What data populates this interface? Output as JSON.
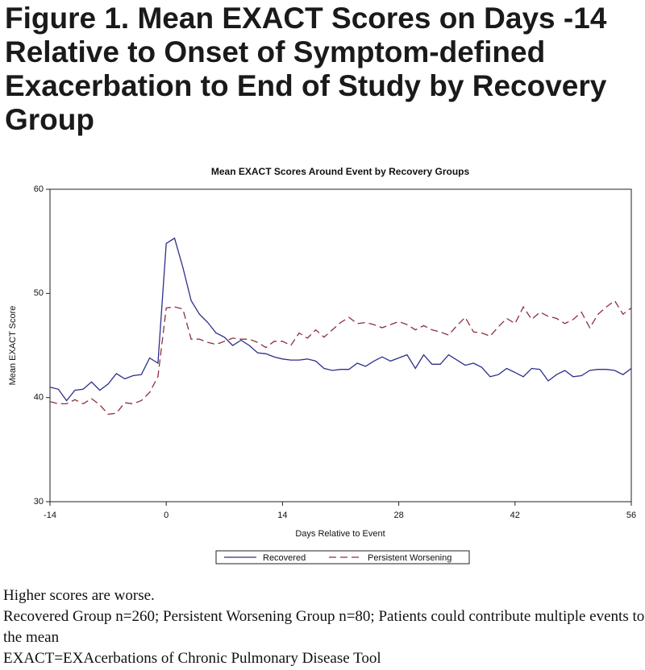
{
  "figure_title": "Figure 1. Mean EXACT Scores on Days -14 Relative to Onset of Symptom-defined Exacerbation to End of Study by Recovery Group",
  "chart_data": {
    "type": "line",
    "title": "Mean EXACT Scores Around Event by Recovery Groups",
    "x_label": "Days Relative to Event",
    "y_label": "Mean EXACT Score",
    "x": [
      -14,
      -13,
      -12,
      -11,
      -10,
      -9,
      -8,
      -7,
      -6,
      -5,
      -4,
      -3,
      -2,
      -1,
      0,
      1,
      2,
      3,
      4,
      5,
      6,
      7,
      8,
      9,
      10,
      11,
      12,
      13,
      14,
      15,
      16,
      17,
      18,
      19,
      20,
      21,
      22,
      23,
      24,
      25,
      26,
      27,
      28,
      29,
      30,
      31,
      32,
      33,
      34,
      35,
      36,
      37,
      38,
      39,
      40,
      41,
      42,
      43,
      44,
      45,
      46,
      47,
      48,
      49,
      50,
      51,
      52,
      53,
      54,
      55,
      56
    ],
    "series": [
      {
        "name": "Recovered",
        "color": "#2e2e8c",
        "dash": false,
        "values": [
          41.0,
          40.8,
          39.7,
          40.7,
          40.8,
          41.5,
          40.7,
          41.3,
          42.3,
          41.8,
          42.1,
          42.2,
          43.8,
          43.3,
          54.8,
          55.3,
          52.5,
          49.3,
          48.0,
          47.2,
          46.2,
          45.8,
          45.0,
          45.5,
          45.0,
          44.3,
          44.2,
          43.9,
          43.7,
          43.6,
          43.6,
          43.7,
          43.5,
          42.8,
          42.6,
          42.7,
          42.7,
          43.3,
          43.0,
          43.5,
          43.9,
          43.5,
          43.8,
          44.1,
          42.8,
          44.1,
          43.2,
          43.2,
          44.1,
          43.6,
          43.1,
          43.3,
          42.9,
          42.0,
          42.2,
          42.8,
          42.4,
          42.0,
          42.8,
          42.7,
          41.6,
          42.2,
          42.6,
          42.0,
          42.1,
          42.6,
          42.7,
          42.7,
          42.6,
          42.2,
          42.8
        ]
      },
      {
        "name": "Persistent Worsening",
        "color": "#8c2f3c",
        "dash": true,
        "values": [
          39.6,
          39.4,
          39.4,
          39.8,
          39.4,
          39.9,
          39.3,
          38.4,
          38.5,
          39.5,
          39.4,
          39.7,
          40.5,
          42.0,
          48.6,
          48.7,
          48.5,
          45.6,
          45.6,
          45.3,
          45.1,
          45.4,
          45.7,
          45.6,
          45.6,
          45.3,
          44.8,
          45.4,
          45.4,
          45.0,
          46.2,
          45.7,
          46.5,
          45.8,
          46.5,
          47.2,
          47.7,
          47.1,
          47.2,
          47.0,
          46.7,
          47.0,
          47.3,
          47.0,
          46.5,
          46.9,
          46.5,
          46.3,
          46.0,
          46.9,
          47.7,
          46.3,
          46.2,
          45.9,
          46.8,
          47.6,
          47.1,
          48.7,
          47.5,
          48.2,
          47.8,
          47.6,
          47.1,
          47.5,
          48.2,
          46.7,
          48.0,
          48.7,
          49.3,
          48.0,
          48.6
        ]
      }
    ],
    "xlim": [
      -14,
      56
    ],
    "xticks": [
      -14,
      0,
      14,
      28,
      42,
      56
    ],
    "ylim": [
      30,
      60
    ],
    "yticks": [
      30,
      40,
      50,
      60
    ],
    "grid": false,
    "legend": "bottom"
  },
  "notes": [
    "Higher scores are worse.",
    "Recovered Group n=260; Persistent Worsening Group n=80; Patients could contribute multiple events to the mean",
    "EXACT=EXAcerbations of Chronic Pulmonary Disease Tool"
  ]
}
